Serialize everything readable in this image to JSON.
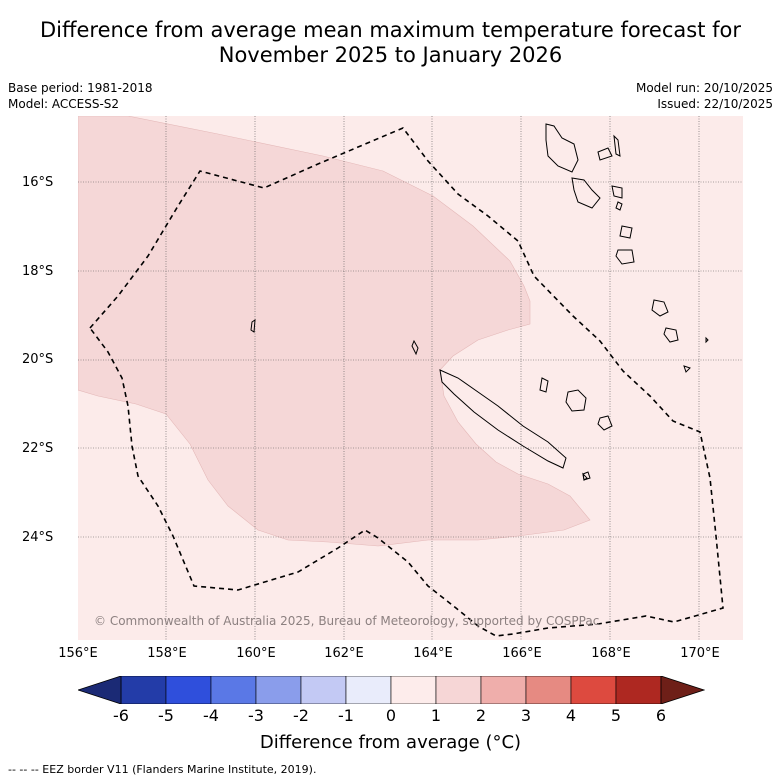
{
  "title_line1": "Difference from average mean maximum temperature forecast for",
  "title_line2": "November 2025 to January 2026",
  "meta_left": {
    "base_period": "Base period: 1981-2018",
    "model": "Model: ACCESS-S2"
  },
  "meta_right": {
    "model_run": "Model run: 20/10/2025",
    "issued": "Issued: 22/10/2025"
  },
  "lat_labels": [
    "16°S",
    "18°S",
    "20°S",
    "22°S",
    "24°S"
  ],
  "lon_labels": [
    "156°E",
    "158°E",
    "160°E",
    "162°E",
    "164°E",
    "166°E",
    "168°E",
    "170°E"
  ],
  "copyright": "© Commonwealth of Australia 2025, Bureau of Meteorology, supported by COSPPac",
  "legend": {
    "ticks": [
      "-6",
      "-5",
      "-4",
      "-3",
      "-2",
      "-1",
      "0",
      "1",
      "2",
      "3",
      "4",
      "5",
      "6"
    ],
    "colors": [
      "#233ca8",
      "#2f4fdc",
      "#5a78e6",
      "#8a9deb",
      "#c3c9f4",
      "#e9ecfb",
      "#fdeceb",
      "#f6d6d6",
      "#efaeab",
      "#e68a82",
      "#dd4a3f",
      "#ae2821"
    ],
    "under_color": "#1b2a75",
    "over_color": "#6e1f18",
    "title": "Difference from average (°C)"
  },
  "footnote": "--  --  -- EEZ border V11 (Flanders Marine Institute, 2019).",
  "field": {
    "background_category": "0 to 1",
    "inner_category": "1 to 2",
    "background_color": "#fcebea",
    "inner_color": "#f5d7d7"
  }
}
